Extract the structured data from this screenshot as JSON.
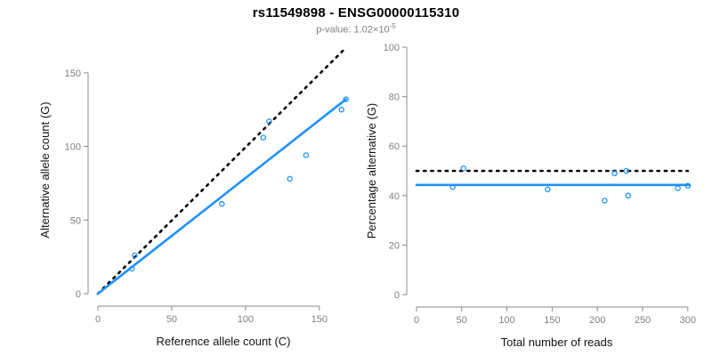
{
  "title": "rs11549898 - ENSG00000115310",
  "subtitle": {
    "prefix": "p-value: 1.02×10",
    "exponent": "-5"
  },
  "colors": {
    "accent_blue": "#1E90FF",
    "identity_black": "#000000",
    "axis_line": "#8a8a8a",
    "tick_label": "#808080",
    "axis_title": "#111111",
    "background": "#ffffff"
  },
  "chart_data": [
    {
      "type": "scatter",
      "title": "",
      "xlabel": "Reference allele count (C)",
      "ylabel": "Alternative allele count (G)",
      "xticks": [
        0,
        50,
        100,
        150
      ],
      "yticks": [
        0,
        50,
        100,
        150
      ],
      "xlim": [
        0,
        170
      ],
      "ylim": [
        0,
        168
      ],
      "grid": false,
      "points": [
        [
          23,
          17
        ],
        [
          25,
          26
        ],
        [
          84,
          61
        ],
        [
          112,
          106
        ],
        [
          116,
          117
        ],
        [
          130,
          78
        ],
        [
          141,
          94
        ],
        [
          165,
          125
        ],
        [
          168,
          132
        ]
      ],
      "lines": [
        {
          "name": "identity-line",
          "style": "dotted",
          "color": "identity_black",
          "from": [
            0,
            0
          ],
          "to": [
            167,
            166
          ]
        },
        {
          "name": "regression-line",
          "style": "solid",
          "color": "accent_blue",
          "from": [
            0,
            0
          ],
          "to": [
            168,
            132
          ]
        }
      ]
    },
    {
      "type": "scatter",
      "title": "",
      "xlabel": "Total number of reads",
      "ylabel": "Percentage alternative (G)",
      "xticks": [
        0,
        50,
        100,
        150,
        200,
        250,
        300
      ],
      "yticks": [
        0,
        20,
        40,
        60,
        80,
        100
      ],
      "xlim": [
        0,
        310
      ],
      "ylim": [
        0,
        100
      ],
      "grid": false,
      "points": [
        [
          40,
          43.5
        ],
        [
          52,
          51
        ],
        [
          145,
          42.5
        ],
        [
          208,
          38
        ],
        [
          219,
          49
        ],
        [
          232,
          50
        ],
        [
          234,
          40
        ],
        [
          289,
          43
        ],
        [
          300,
          44
        ]
      ],
      "lines": [
        {
          "name": "expected-50pct-line",
          "style": "dotted",
          "color": "identity_black",
          "from": [
            0,
            50
          ],
          "to": [
            300,
            50
          ]
        },
        {
          "name": "mean-percentage-line",
          "style": "solid",
          "color": "accent_blue",
          "from": [
            0,
            44.3
          ],
          "to": [
            302,
            44.3
          ]
        }
      ]
    }
  ]
}
